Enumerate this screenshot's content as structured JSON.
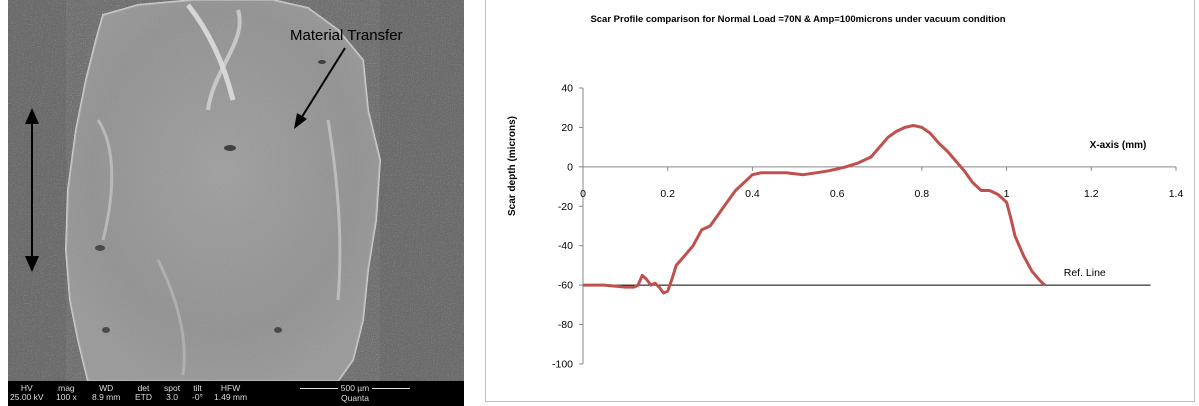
{
  "micrograph": {
    "annotation": "Material Transfer",
    "databar": {
      "columns": [
        {
          "head": "HV",
          "value": "25.00 kV"
        },
        {
          "head": "mag",
          "value": "100 x"
        },
        {
          "head": "WD",
          "value": "8.9 mm"
        },
        {
          "head": "det",
          "value": "ETD"
        },
        {
          "head": "spot",
          "value": "3.0"
        },
        {
          "head": "tilt",
          "value": "-0°"
        },
        {
          "head": "HFW",
          "value": "1.49 mm"
        }
      ],
      "scale_label": "500 µm",
      "instrument": "Quanta"
    }
  },
  "chart_data": {
    "type": "line",
    "title": "Scar Profile comparison for Normal Load =70N  & Amp=100microns under vacuum condition",
    "xlabel": "X-axis (mm)",
    "ylabel": "Scar depth (microns)",
    "xlim": [
      0,
      1.4
    ],
    "ylim": [
      -100,
      40
    ],
    "x_ticks": [
      "0",
      "0.2",
      "0.4",
      "0.6",
      "0.8",
      "1",
      "1.2",
      "1.4"
    ],
    "y_ticks": [
      "40",
      "20",
      "0",
      "-20",
      "-40",
      "-60",
      "-80",
      "-100"
    ],
    "grid": false,
    "series": [
      {
        "color": "#c0504d",
        "x": [
          0,
          0.05,
          0.1,
          0.12,
          0.13,
          0.14,
          0.15,
          0.16,
          0.17,
          0.18,
          0.19,
          0.2,
          0.21,
          0.22,
          0.24,
          0.26,
          0.28,
          0.3,
          0.32,
          0.34,
          0.36,
          0.38,
          0.4,
          0.42,
          0.45,
          0.48,
          0.52,
          0.55,
          0.58,
          0.62,
          0.65,
          0.68,
          0.7,
          0.72,
          0.74,
          0.76,
          0.78,
          0.8,
          0.82,
          0.84,
          0.86,
          0.88,
          0.9,
          0.92,
          0.94,
          0.96,
          0.98,
          1.0,
          1.01,
          1.02,
          1.04,
          1.06,
          1.08,
          1.09
        ],
        "y": [
          -60,
          -60,
          -61,
          -61,
          -60,
          -55,
          -57,
          -60,
          -59,
          -61,
          -64,
          -63,
          -57,
          -50,
          -45,
          -40,
          -32,
          -30,
          -24,
          -18,
          -12,
          -8,
          -4,
          -3,
          -3,
          -3,
          -4,
          -3,
          -2,
          0,
          2,
          5,
          10,
          15,
          18,
          20,
          21,
          20,
          17,
          12,
          8,
          3,
          -2,
          -8,
          -12,
          -12,
          -14,
          -18,
          -26,
          -35,
          -45,
          -53,
          -58,
          -60
        ]
      }
    ],
    "annotations": {
      "ref_line": {
        "y": -60,
        "x_from": 0,
        "x_to": 1.34,
        "label": "Ref. Line",
        "color": "#000000"
      }
    }
  }
}
